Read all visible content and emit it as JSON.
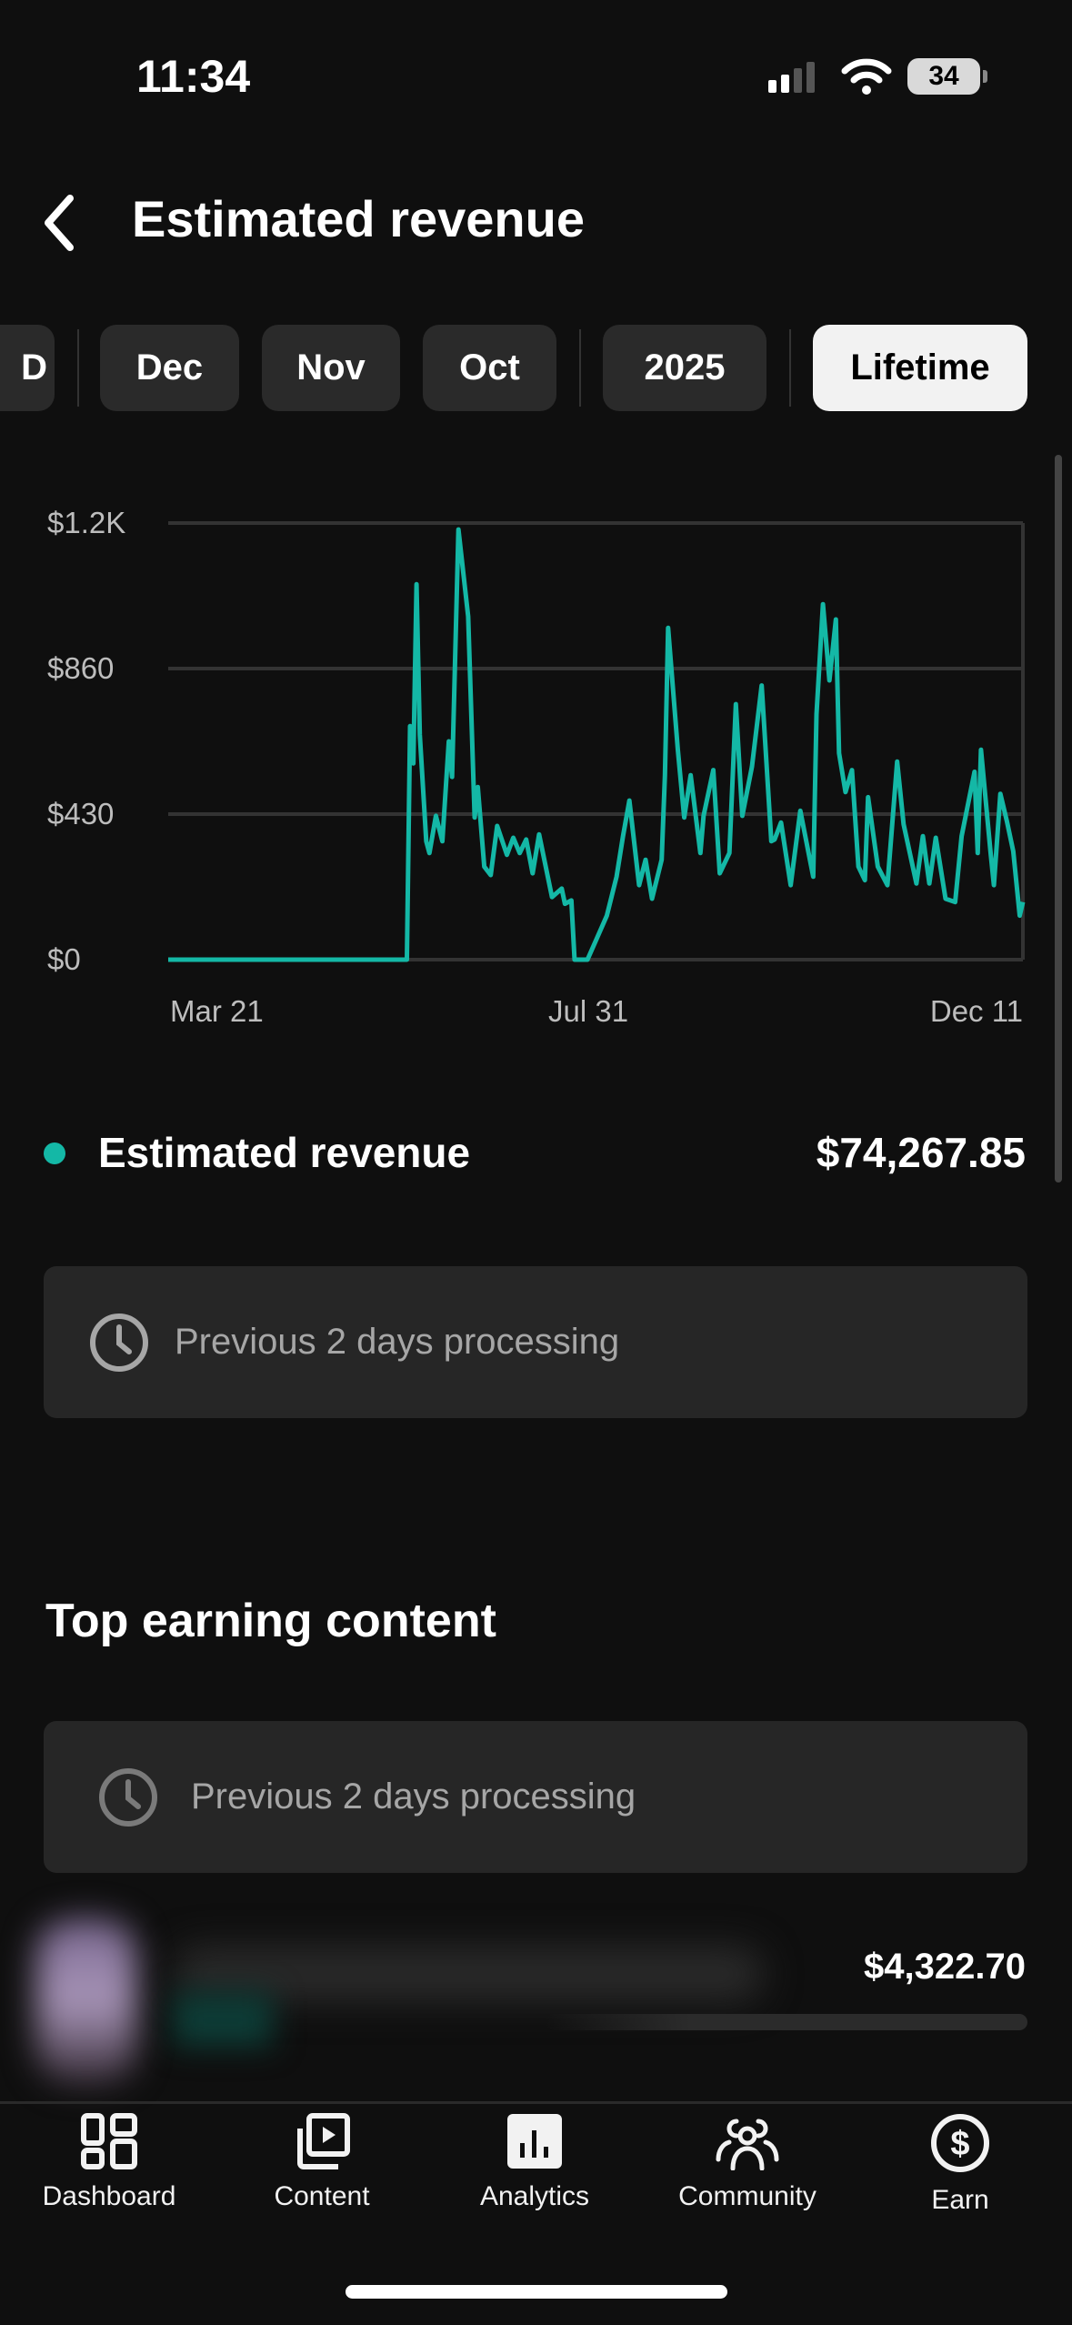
{
  "status": {
    "time": "11:34",
    "battery": "34"
  },
  "header": {
    "title": "Estimated revenue"
  },
  "periods": [
    {
      "label": "D"
    },
    {
      "label": "Dec"
    },
    {
      "label": "Nov"
    },
    {
      "label": "Oct"
    },
    {
      "label": "2025"
    },
    {
      "label": "Lifetime",
      "active": true
    }
  ],
  "summary": {
    "label": "Estimated revenue",
    "value": "$74,267.85",
    "color": "#14b8a6"
  },
  "processing": {
    "text": "Previous 2 days processing"
  },
  "top_content": {
    "title": "Top earning content",
    "processing": "Previous 2 days processing",
    "items": [
      {
        "value": "$4,322.70"
      }
    ]
  },
  "nav": [
    {
      "label": "Dashboard",
      "icon": "dashboard-icon"
    },
    {
      "label": "Content",
      "icon": "content-icon"
    },
    {
      "label": "Analytics",
      "icon": "analytics-icon",
      "active": true
    },
    {
      "label": "Community",
      "icon": "community-icon"
    },
    {
      "label": "Earn",
      "icon": "earn-icon"
    }
  ],
  "chart_data": {
    "type": "line",
    "title": "",
    "xlabel": "",
    "ylabel": "",
    "ytick_labels": [
      "$0",
      "$430",
      "$860",
      "$1.2K"
    ],
    "yticks": [
      0,
      430,
      860,
      1290
    ],
    "ylim": [
      0,
      1290
    ],
    "xtick_labels": [
      "Mar 21",
      "Jul 31",
      "Dec 11"
    ],
    "xlim": [
      "Mar 21",
      "Dec 11"
    ],
    "grid": true,
    "color": "#14b8a6",
    "series": [
      {
        "points": [
          [
            "Mar 21",
            0
          ],
          [
            "Jun 3",
            0
          ],
          [
            "Jun 4",
            690
          ],
          [
            "Jun 5",
            580
          ],
          [
            "Jun 6",
            1109
          ],
          [
            "Jun 7",
            665
          ],
          [
            "Jun 9",
            350
          ],
          [
            "Jun 10",
            315
          ],
          [
            "Jun 12",
            425
          ],
          [
            "Jun 14",
            350
          ],
          [
            "Jun 16",
            645
          ],
          [
            "Jun 17",
            540
          ],
          [
            "Jun 19",
            1271
          ],
          [
            "Jun 22",
            1014
          ],
          [
            "Jun 24",
            420
          ],
          [
            "Jun 25",
            510
          ],
          [
            "Jun 27",
            275
          ],
          [
            "Jun 29",
            250
          ],
          [
            "Jul 1",
            395
          ],
          [
            "Jul 4",
            310
          ],
          [
            "Jul 6",
            360
          ],
          [
            "Jul 8",
            315
          ],
          [
            "Jul 10",
            355
          ],
          [
            "Jul 12",
            255
          ],
          [
            "Jul 14",
            370
          ],
          [
            "Jul 18",
            185
          ],
          [
            "Jul 21",
            210
          ],
          [
            "Jul 22",
            165
          ],
          [
            "Jul 24",
            175
          ],
          [
            "Jul 25",
            0
          ],
          [
            "Jul 29",
            0
          ],
          [
            "Aug 1",
            65
          ],
          [
            "Aug 4",
            130
          ],
          [
            "Aug 7",
            245
          ],
          [
            "Aug 9",
            365
          ],
          [
            "Aug 11",
            470
          ],
          [
            "Aug 14",
            220
          ],
          [
            "Aug 16",
            295
          ],
          [
            "Aug 18",
            180
          ],
          [
            "Aug 21",
            295
          ],
          [
            "Aug 22",
            545
          ],
          [
            "Aug 23",
            980
          ],
          [
            "Aug 26",
            620
          ],
          [
            "Aug 28",
            420
          ],
          [
            "Aug 30",
            545
          ],
          [
            "Sep 2",
            315
          ],
          [
            "Sep 3",
            425
          ],
          [
            "Sep 6",
            560
          ],
          [
            "Sep 8",
            255
          ],
          [
            "Sep 11",
            315
          ],
          [
            "Sep 13",
            755
          ],
          [
            "Sep 15",
            425
          ],
          [
            "Sep 18",
            570
          ],
          [
            "Sep 21",
            810
          ],
          [
            "Sep 24",
            350
          ],
          [
            "Sep 25",
            355
          ],
          [
            "Sep 27",
            405
          ],
          [
            "Sep 30",
            220
          ],
          [
            "Oct 3",
            440
          ],
          [
            "Oct 7",
            245
          ],
          [
            "Oct 8",
            725
          ],
          [
            "Oct 10",
            1050
          ],
          [
            "Oct 12",
            825
          ],
          [
            "Oct 14",
            1005
          ],
          [
            "Oct 15",
            610
          ],
          [
            "Oct 17",
            495
          ],
          [
            "Oct 19",
            560
          ],
          [
            "Oct 21",
            275
          ],
          [
            "Oct 23",
            235
          ],
          [
            "Oct 24",
            480
          ],
          [
            "Oct 27",
            275
          ],
          [
            "Oct 30",
            220
          ],
          [
            "Nov 2",
            585
          ],
          [
            "Nov 4",
            400
          ],
          [
            "Nov 8",
            225
          ],
          [
            "Nov 10",
            365
          ],
          [
            "Nov 12",
            225
          ],
          [
            "Nov 14",
            360
          ],
          [
            "Nov 17",
            180
          ],
          [
            "Nov 20",
            170
          ],
          [
            "Nov 22",
            365
          ],
          [
            "Nov 26",
            555
          ],
          [
            "Nov 27",
            315
          ],
          [
            "Nov 28",
            620
          ],
          [
            "Dec 1",
            315
          ],
          [
            "Dec 2",
            220
          ],
          [
            "Dec 4",
            490
          ],
          [
            "Dec 6",
            410
          ],
          [
            "Dec 8",
            320
          ],
          [
            "Dec 10",
            130
          ],
          [
            "Dec 11",
            170
          ]
        ]
      }
    ]
  }
}
